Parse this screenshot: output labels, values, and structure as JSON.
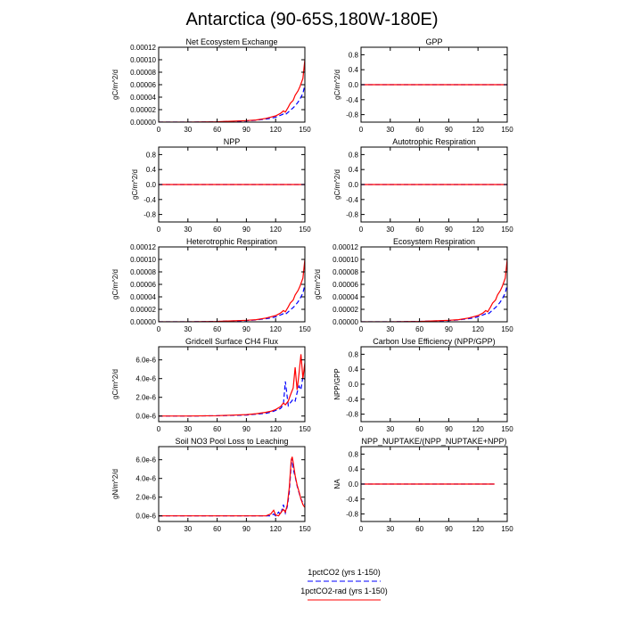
{
  "figure": {
    "title": "Antarctica (90-65S,180W-180E)"
  },
  "legend": [
    {
      "label": "1pctCO2 (yrs 1-150)",
      "color": "#0000ff",
      "dash": "dashed"
    },
    {
      "label": "1pctCO2-rad (yrs 1-150)",
      "color": "#ff0000",
      "dash": "solid"
    }
  ],
  "chart_data": [
    {
      "type": "line",
      "title": "Net Ecosystem Exchange",
      "xlabel": "",
      "ylabel": "gC/m^2/d",
      "xlim": [
        0,
        150
      ],
      "ylim": [
        0,
        0.00012
      ],
      "xticks": [
        0,
        30,
        60,
        90,
        120,
        150
      ],
      "yticks": [
        0.0,
        2e-05,
        4e-05,
        6e-05,
        8e-05,
        0.0001,
        0.00012
      ],
      "ytick_labels": [
        "0.00000",
        "0.00002",
        "0.00004",
        "0.00006",
        "0.00008",
        "0.00010",
        "0.00012"
      ],
      "x": [
        0,
        30,
        60,
        90,
        100,
        110,
        115,
        120,
        125,
        128,
        130,
        133,
        135,
        138,
        140,
        143,
        145,
        148,
        150
      ],
      "series": [
        {
          "name": "1pctCO2 (yrs 1-150)",
          "color": "#0000ff",
          "dash": "dashed",
          "values": [
            0,
            0,
            5e-07,
            2e-06,
            3e-06,
            5e-06,
            6e-06,
            8e-06,
            1.1e-05,
            1.3e-05,
            1.2e-05,
            1.6e-05,
            1.9e-05,
            2.3e-05,
            2.6e-05,
            3.2e-05,
            3.7e-05,
            4.6e-05,
            6e-05
          ]
        },
        {
          "name": "1pctCO2-rad (yrs 1-150)",
          "color": "#ff0000",
          "dash": "solid",
          "values": [
            0,
            0,
            6e-07,
            2.5e-06,
            3.5e-06,
            6e-06,
            8e-06,
            1e-05,
            1.4e-05,
            1.8e-05,
            1.6e-05,
            2.4e-05,
            3e-05,
            3.5e-05,
            4.3e-05,
            5e-05,
            5.7e-05,
            7e-05,
            0.0001
          ]
        }
      ]
    },
    {
      "type": "line",
      "title": "GPP",
      "xlabel": "",
      "ylabel": "gC/m^2/d",
      "xlim": [
        0,
        150
      ],
      "ylim": [
        -1,
        1
      ],
      "xticks": [
        0,
        30,
        60,
        90,
        120,
        150
      ],
      "yticks": [
        -0.8,
        -0.4,
        0.0,
        0.4,
        0.8
      ],
      "ytick_labels": [
        "-0.8",
        "-0.4",
        "0.0",
        "0.4",
        "0.8"
      ],
      "x": [
        0,
        150
      ],
      "series": [
        {
          "name": "1pctCO2 (yrs 1-150)",
          "color": "#0000ff",
          "dash": "dashed",
          "values": [
            0,
            0
          ]
        },
        {
          "name": "1pctCO2-rad (yrs 1-150)",
          "color": "#ff0000",
          "dash": "solid",
          "values": [
            0,
            0
          ]
        }
      ]
    },
    {
      "type": "line",
      "title": "NPP",
      "xlabel": "",
      "ylabel": "gC/m^2/d",
      "xlim": [
        0,
        150
      ],
      "ylim": [
        -1,
        1
      ],
      "xticks": [
        0,
        30,
        60,
        90,
        120,
        150
      ],
      "yticks": [
        -0.8,
        -0.4,
        0.0,
        0.4,
        0.8
      ],
      "ytick_labels": [
        "-0.8",
        "-0.4",
        "0.0",
        "0.4",
        "0.8"
      ],
      "x": [
        0,
        150
      ],
      "series": [
        {
          "name": "1pctCO2 (yrs 1-150)",
          "color": "#0000ff",
          "dash": "dashed",
          "values": [
            0,
            0
          ]
        },
        {
          "name": "1pctCO2-rad (yrs 1-150)",
          "color": "#ff0000",
          "dash": "solid",
          "values": [
            0,
            0
          ]
        }
      ]
    },
    {
      "type": "line",
      "title": "Autotrophic Respiration",
      "xlabel": "",
      "ylabel": "gC/m^2/d",
      "xlim": [
        0,
        150
      ],
      "ylim": [
        -1,
        1
      ],
      "xticks": [
        0,
        30,
        60,
        90,
        120,
        150
      ],
      "yticks": [
        -0.8,
        -0.4,
        0.0,
        0.4,
        0.8
      ],
      "ytick_labels": [
        "-0.8",
        "-0.4",
        "0.0",
        "0.4",
        "0.8"
      ],
      "x": [
        0,
        150
      ],
      "series": [
        {
          "name": "1pctCO2 (yrs 1-150)",
          "color": "#0000ff",
          "dash": "dashed",
          "values": [
            0,
            0
          ]
        },
        {
          "name": "1pctCO2-rad (yrs 1-150)",
          "color": "#ff0000",
          "dash": "solid",
          "values": [
            0,
            0
          ]
        }
      ]
    },
    {
      "type": "line",
      "title": "Heterotrophic Respiration",
      "xlabel": "",
      "ylabel": "gC/m^2/d",
      "xlim": [
        0,
        150
      ],
      "ylim": [
        0,
        0.00012
      ],
      "xticks": [
        0,
        30,
        60,
        90,
        120,
        150
      ],
      "yticks": [
        0.0,
        2e-05,
        4e-05,
        6e-05,
        8e-05,
        0.0001,
        0.00012
      ],
      "ytick_labels": [
        "0.00000",
        "0.00002",
        "0.00004",
        "0.00006",
        "0.00008",
        "0.00010",
        "0.00012"
      ],
      "x": [
        0,
        30,
        60,
        90,
        100,
        110,
        115,
        120,
        125,
        128,
        130,
        133,
        135,
        138,
        140,
        143,
        145,
        148,
        150
      ],
      "series": [
        {
          "name": "1pctCO2 (yrs 1-150)",
          "color": "#0000ff",
          "dash": "dashed",
          "values": [
            0,
            0,
            5e-07,
            2e-06,
            3e-06,
            5e-06,
            6e-06,
            8e-06,
            1.1e-05,
            1.3e-05,
            1.2e-05,
            1.6e-05,
            1.9e-05,
            2.3e-05,
            2.6e-05,
            3.2e-05,
            3.7e-05,
            4.6e-05,
            6e-05
          ]
        },
        {
          "name": "1pctCO2-rad (yrs 1-150)",
          "color": "#ff0000",
          "dash": "solid",
          "values": [
            0,
            0,
            6e-07,
            2.5e-06,
            3.5e-06,
            6e-06,
            8e-06,
            1e-05,
            1.4e-05,
            1.8e-05,
            1.6e-05,
            2.4e-05,
            3e-05,
            3.5e-05,
            4.3e-05,
            5e-05,
            5.7e-05,
            7e-05,
            0.0001
          ]
        }
      ]
    },
    {
      "type": "line",
      "title": "Ecosystem Respiration",
      "xlabel": "",
      "ylabel": "gC/m^2/d",
      "xlim": [
        0,
        150
      ],
      "ylim": [
        0,
        0.00012
      ],
      "xticks": [
        0,
        30,
        60,
        90,
        120,
        150
      ],
      "yticks": [
        0.0,
        2e-05,
        4e-05,
        6e-05,
        8e-05,
        0.0001,
        0.00012
      ],
      "ytick_labels": [
        "0.00000",
        "0.00002",
        "0.00004",
        "0.00006",
        "0.00008",
        "0.00010",
        "0.00012"
      ],
      "x": [
        0,
        30,
        60,
        90,
        100,
        110,
        115,
        120,
        125,
        128,
        130,
        133,
        135,
        138,
        140,
        143,
        145,
        148,
        150
      ],
      "series": [
        {
          "name": "1pctCO2 (yrs 1-150)",
          "color": "#0000ff",
          "dash": "dashed",
          "values": [
            0,
            0,
            5e-07,
            2e-06,
            3e-06,
            5e-06,
            6e-06,
            8e-06,
            1.1e-05,
            1.3e-05,
            1.2e-05,
            1.6e-05,
            1.9e-05,
            2.3e-05,
            2.6e-05,
            3.2e-05,
            3.7e-05,
            4.6e-05,
            6e-05
          ]
        },
        {
          "name": "1pctCO2-rad (yrs 1-150)",
          "color": "#ff0000",
          "dash": "solid",
          "values": [
            0,
            0,
            6e-07,
            2.5e-06,
            3.5e-06,
            6e-06,
            8e-06,
            1e-05,
            1.4e-05,
            1.8e-05,
            1.6e-05,
            2.4e-05,
            3e-05,
            3.5e-05,
            4.3e-05,
            5e-05,
            5.7e-05,
            7e-05,
            0.0001
          ]
        }
      ]
    },
    {
      "type": "line",
      "title": "Gridcell Surface CH4 Flux",
      "xlabel": "",
      "ylabel": "gC/m^2/d",
      "xlim": [
        0,
        150
      ],
      "ylim": [
        -6e-07,
        7.4e-06
      ],
      "xticks": [
        0,
        30,
        60,
        90,
        120,
        150
      ],
      "yticks": [
        0.0,
        2e-06,
        4e-06,
        6e-06
      ],
      "ytick_labels": [
        "0.0e-6",
        "2.0e-6",
        "4.0e-6",
        "6.0e-6"
      ],
      "x": [
        0,
        30,
        60,
        90,
        100,
        110,
        115,
        120,
        125,
        128,
        130,
        133,
        135,
        138,
        140,
        142,
        144,
        146,
        148,
        150
      ],
      "series": [
        {
          "name": "1pctCO2 (yrs 1-150)",
          "color": "#0000ff",
          "dash": "dashed",
          "values": [
            0,
            0,
            3e-08,
            1e-07,
            2e-07,
            3e-07,
            4e-07,
            6e-07,
            8e-07,
            1.2e-06,
            3.7e-06,
            1.1e-06,
            1.4e-06,
            1.8e-06,
            1.6e-06,
            2.5e-06,
            3.2e-06,
            2.8e-06,
            4.2e-06,
            3.9e-06
          ]
        },
        {
          "name": "1pctCO2-rad (yrs 1-150)",
          "color": "#ff0000",
          "dash": "solid",
          "values": [
            0,
            0,
            4e-08,
            1.5e-07,
            2.5e-07,
            4e-07,
            5e-07,
            7e-07,
            1e-06,
            1.4e-06,
            1.2e-06,
            1.6e-06,
            2.2e-06,
            3e-06,
            5.2e-06,
            2.8e-06,
            4.5e-06,
            6.6e-06,
            4e-06,
            5.7e-06
          ]
        }
      ]
    },
    {
      "type": "line",
      "title": "Carbon Use Efficiency (NPP/GPP)",
      "xlabel": "",
      "ylabel": "NPP/GPP",
      "xlim": [
        0,
        150
      ],
      "ylim": [
        -1,
        1
      ],
      "xticks": [
        0,
        30,
        60,
        90,
        120,
        150
      ],
      "yticks": [
        -0.8,
        -0.4,
        0.0,
        0.4,
        0.8
      ],
      "ytick_labels": [
        "-0.8",
        "-0.4",
        "0.0",
        "0.4",
        "0.8"
      ],
      "x": [],
      "series": []
    },
    {
      "type": "line",
      "title": "Soil NO3 Pool Loss to Leaching",
      "xlabel": "",
      "ylabel": "gN/m^2/d",
      "xlim": [
        0,
        150
      ],
      "ylim": [
        -6e-07,
        7.4e-06
      ],
      "xticks": [
        0,
        30,
        60,
        90,
        120,
        150
      ],
      "yticks": [
        0.0,
        2e-06,
        4e-06,
        6e-06
      ],
      "ytick_labels": [
        "0.0e-6",
        "2.0e-6",
        "4.0e-6",
        "6.0e-6"
      ],
      "x": [
        0,
        110,
        115,
        118,
        120,
        123,
        125,
        128,
        130,
        132,
        134,
        136,
        137,
        138,
        140,
        142,
        144,
        146,
        148,
        150
      ],
      "series": [
        {
          "name": "1pctCO2 (yrs 1-150)",
          "color": "#0000ff",
          "dash": "dashed",
          "values": [
            0,
            0,
            0,
            2e-07,
            0,
            4e-07,
            1e-07,
            1.2e-06,
            3e-07,
            1e-06,
            2.5e-06,
            5.5e-06,
            6.2e-06,
            5e-06,
            4.2e-06,
            3.2e-06,
            2.5e-06,
            1.8e-06,
            1.4e-06,
            1.2e-06
          ]
        },
        {
          "name": "1pctCO2-rad (yrs 1-150)",
          "color": "#ff0000",
          "dash": "solid",
          "values": [
            0,
            0,
            2e-07,
            6e-07,
            1e-07,
            0,
            3e-07,
            7e-07,
            4e-07,
            1.2e-06,
            3e-06,
            6e-06,
            6.3e-06,
            5.7e-06,
            4.3e-06,
            3.3e-06,
            2.6e-06,
            1.8e-06,
            1.2e-06,
            9e-07
          ]
        }
      ]
    },
    {
      "type": "line",
      "title": "NPP_NUPTAKE/(NPP_NUPTAKE+NPP)",
      "xlabel": "",
      "ylabel": "NA",
      "xlim": [
        0,
        150
      ],
      "ylim": [
        -1,
        1
      ],
      "xticks": [
        0,
        30,
        60,
        90,
        120,
        150
      ],
      "yticks": [
        -0.8,
        -0.4,
        0.0,
        0.4,
        0.8
      ],
      "ytick_labels": [
        "-0.8",
        "-0.4",
        "0.0",
        "0.4",
        "0.8"
      ],
      "x": [
        0,
        137
      ],
      "series": [
        {
          "name": "1pctCO2 (yrs 1-150)",
          "color": "#0000ff",
          "dash": "dashed",
          "values": [
            0,
            0
          ]
        },
        {
          "name": "1pctCO2-rad (yrs 1-150)",
          "color": "#ff0000",
          "dash": "solid",
          "values": [
            0,
            0
          ]
        }
      ]
    }
  ]
}
